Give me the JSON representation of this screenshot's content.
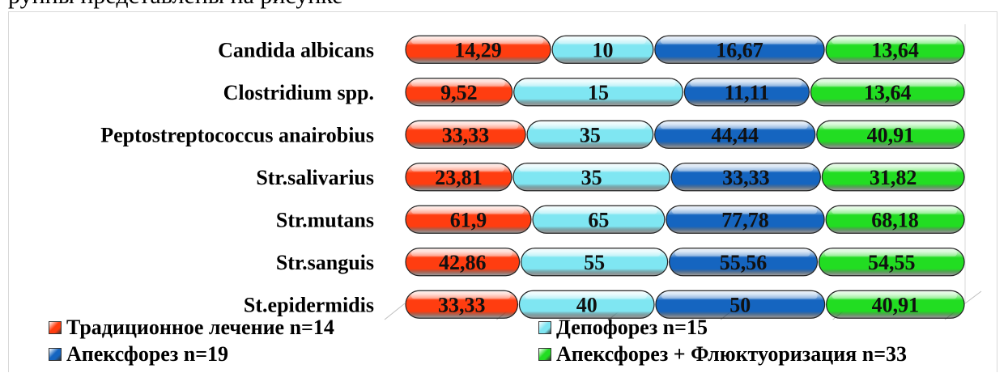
{
  "page": {
    "top_text": "руппы представлены на рисунке"
  },
  "chart_data": {
    "type": "bar",
    "stacked": true,
    "orientation": "horizontal",
    "grid": true,
    "legend_position": "bottom",
    "categories": [
      "Candida albicans",
      "Clostridium spp.",
      "Peptostreptococcus anairobius",
      "Str.salivarius",
      "Str.mutans",
      "Str.sanguis",
      "St.epidermidis"
    ],
    "series": [
      {
        "name": "Традиционное лечение n=14",
        "color": "#ff3d10",
        "values": [
          14.29,
          9.52,
          33.33,
          23.81,
          61.9,
          42.86,
          33.33
        ],
        "labels": [
          "14,29",
          "9,52",
          "33,33",
          "23,81",
          "61,9",
          "42,86",
          "33,33"
        ]
      },
      {
        "name": "Депофорез  n=15",
        "color": "#7fe6f2",
        "values": [
          10,
          15,
          35,
          35,
          65,
          55,
          40
        ],
        "labels": [
          "10",
          "15",
          "35",
          "35",
          "65",
          "55",
          "40"
        ]
      },
      {
        "name": "Апексфорез  n=19",
        "color": "#1565c0",
        "values": [
          16.67,
          11.11,
          44.44,
          33.33,
          77.78,
          55.56,
          50
        ],
        "labels": [
          "16,67",
          "11,11",
          "44,44",
          "33,33",
          "77,78",
          "55,56",
          "50"
        ]
      },
      {
        "name": "Апексфорез + Флюктуоризация  n=33",
        "color": "#22dd22",
        "values": [
          13.64,
          13.64,
          40.91,
          31.82,
          68.18,
          54.55,
          40.91
        ],
        "labels": [
          "13,64",
          "13,64",
          "40,91",
          "31,82",
          "68,18",
          "54,55",
          "40,91"
        ]
      }
    ]
  }
}
